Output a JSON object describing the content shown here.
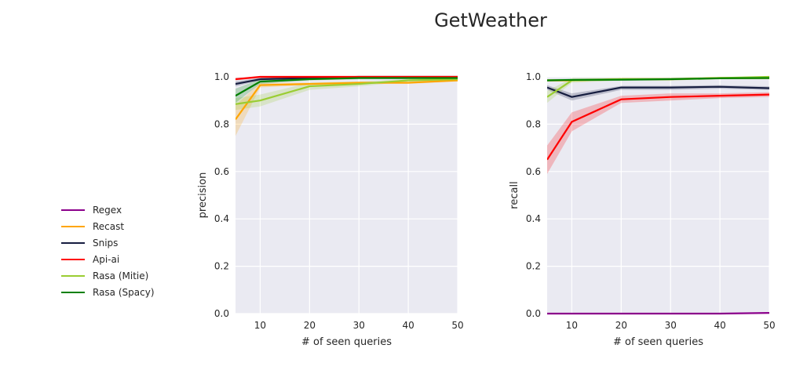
{
  "figure": {
    "title": "GetWeather",
    "legend": {
      "placement": "left",
      "entries": [
        {
          "label": "Regex",
          "color": "#8b008b"
        },
        {
          "label": "Recast",
          "color": "#ffa500"
        },
        {
          "label": "Snips",
          "color": "#161d40"
        },
        {
          "label": "Api-ai",
          "color": "#ff0000"
        },
        {
          "label": "Rasa (Mitie)",
          "color": "#9acd32"
        },
        {
          "label": "Rasa (Spacy)",
          "color": "#008000"
        }
      ]
    }
  },
  "chart_data": [
    {
      "type": "line",
      "xlabel": "# of seen queries",
      "ylabel": "precision",
      "xlim": [
        5,
        50
      ],
      "ylim": [
        0,
        1
      ],
      "xticks": [
        10,
        20,
        30,
        40,
        50
      ],
      "yticks": [
        0.0,
        0.2,
        0.4,
        0.6,
        0.8,
        1.0
      ],
      "grid": true,
      "x": [
        5,
        10,
        20,
        30,
        40,
        50
      ],
      "series": [
        {
          "name": "Recast",
          "color": "#ffa500",
          "values": [
            0.82,
            0.965,
            0.97,
            0.975,
            0.975,
            0.985
          ],
          "band_low": [
            0.75,
            0.955,
            0.965,
            0.97,
            0.97,
            0.98
          ],
          "band_high": [
            0.88,
            0.975,
            0.975,
            0.98,
            0.98,
            0.99
          ]
        },
        {
          "name": "Snips",
          "color": "#161d40",
          "values": [
            0.97,
            0.99,
            0.995,
            1.0,
            1.0,
            1.0
          ],
          "band_low": [
            0.96,
            0.985,
            0.99,
            0.995,
            0.995,
            0.995
          ],
          "band_high": [
            0.98,
            0.995,
            1.0,
            1.0,
            1.0,
            1.0
          ]
        },
        {
          "name": "Api-ai",
          "color": "#ff0000",
          "values": [
            0.99,
            1.0,
            1.0,
            1.0,
            1.0,
            1.0
          ],
          "band_low": [
            0.985,
            0.995,
            0.995,
            0.995,
            0.995,
            0.995
          ],
          "band_high": [
            0.995,
            1.0,
            1.0,
            1.0,
            1.0,
            1.0
          ]
        },
        {
          "name": "Rasa (Mitie)",
          "color": "#9acd32",
          "values": [
            0.885,
            0.9,
            0.96,
            0.97,
            0.985,
            0.99
          ],
          "band_low": [
            0.86,
            0.875,
            0.945,
            0.96,
            0.98,
            0.985
          ],
          "band_high": [
            0.91,
            0.925,
            0.975,
            0.98,
            0.99,
            0.995
          ]
        },
        {
          "name": "Rasa (Spacy)",
          "color": "#008000",
          "values": [
            0.92,
            0.98,
            0.99,
            0.995,
            0.995,
            0.995
          ],
          "band_low": [
            0.89,
            0.97,
            0.985,
            0.99,
            0.99,
            0.99
          ],
          "band_high": [
            0.95,
            0.99,
            0.995,
            1.0,
            1.0,
            1.0
          ]
        }
      ]
    },
    {
      "type": "line",
      "xlabel": "# of seen queries",
      "ylabel": "recall",
      "xlim": [
        5,
        50
      ],
      "ylim": [
        0,
        1
      ],
      "xticks": [
        10,
        20,
        30,
        40,
        50
      ],
      "yticks": [
        0.0,
        0.2,
        0.4,
        0.6,
        0.8,
        1.0
      ],
      "grid": true,
      "x": [
        5,
        10,
        20,
        30,
        40,
        50
      ],
      "series": [
        {
          "name": "Regex",
          "color": "#8b008b",
          "values": [
            0.0,
            0.0,
            0.0,
            0.0,
            0.0,
            0.003
          ],
          "band_low": [
            0.0,
            0.0,
            0.0,
            0.0,
            0.0,
            0.0
          ],
          "band_high": [
            0.002,
            0.002,
            0.002,
            0.002,
            0.002,
            0.006
          ]
        },
        {
          "name": "Recast",
          "color": "#ffa500",
          "values": [
            0.985,
            0.985,
            0.99,
            0.99,
            0.995,
            0.995
          ],
          "band_low": [
            0.98,
            0.98,
            0.985,
            0.985,
            0.99,
            0.99
          ],
          "band_high": [
            0.99,
            0.99,
            0.995,
            0.995,
            1.0,
            1.0
          ]
        },
        {
          "name": "Snips",
          "color": "#161d40",
          "values": [
            0.955,
            0.915,
            0.955,
            0.955,
            0.958,
            0.952
          ],
          "band_low": [
            0.945,
            0.9,
            0.945,
            0.945,
            0.95,
            0.945
          ],
          "band_high": [
            0.965,
            0.93,
            0.962,
            0.962,
            0.965,
            0.96
          ]
        },
        {
          "name": "Api-ai",
          "color": "#ff0000",
          "values": [
            0.65,
            0.81,
            0.905,
            0.915,
            0.92,
            0.925
          ],
          "band_low": [
            0.59,
            0.77,
            0.89,
            0.9,
            0.91,
            0.915
          ],
          "band_high": [
            0.71,
            0.85,
            0.92,
            0.93,
            0.93,
            0.935
          ]
        },
        {
          "name": "Rasa (Mitie)",
          "color": "#9acd32",
          "values": [
            0.915,
            0.985,
            0.99,
            0.99,
            0.995,
            1.0
          ],
          "band_low": [
            0.89,
            0.975,
            0.985,
            0.985,
            0.99,
            0.995
          ],
          "band_high": [
            0.94,
            0.995,
            0.995,
            0.995,
            1.0,
            1.0
          ]
        },
        {
          "name": "Rasa (Spacy)",
          "color": "#008000",
          "values": [
            0.985,
            0.987,
            0.988,
            0.99,
            0.994,
            0.995
          ],
          "band_low": [
            0.98,
            0.982,
            0.983,
            0.985,
            0.99,
            0.99
          ],
          "band_high": [
            0.99,
            0.992,
            0.993,
            0.995,
            0.998,
            1.0
          ]
        }
      ]
    }
  ]
}
